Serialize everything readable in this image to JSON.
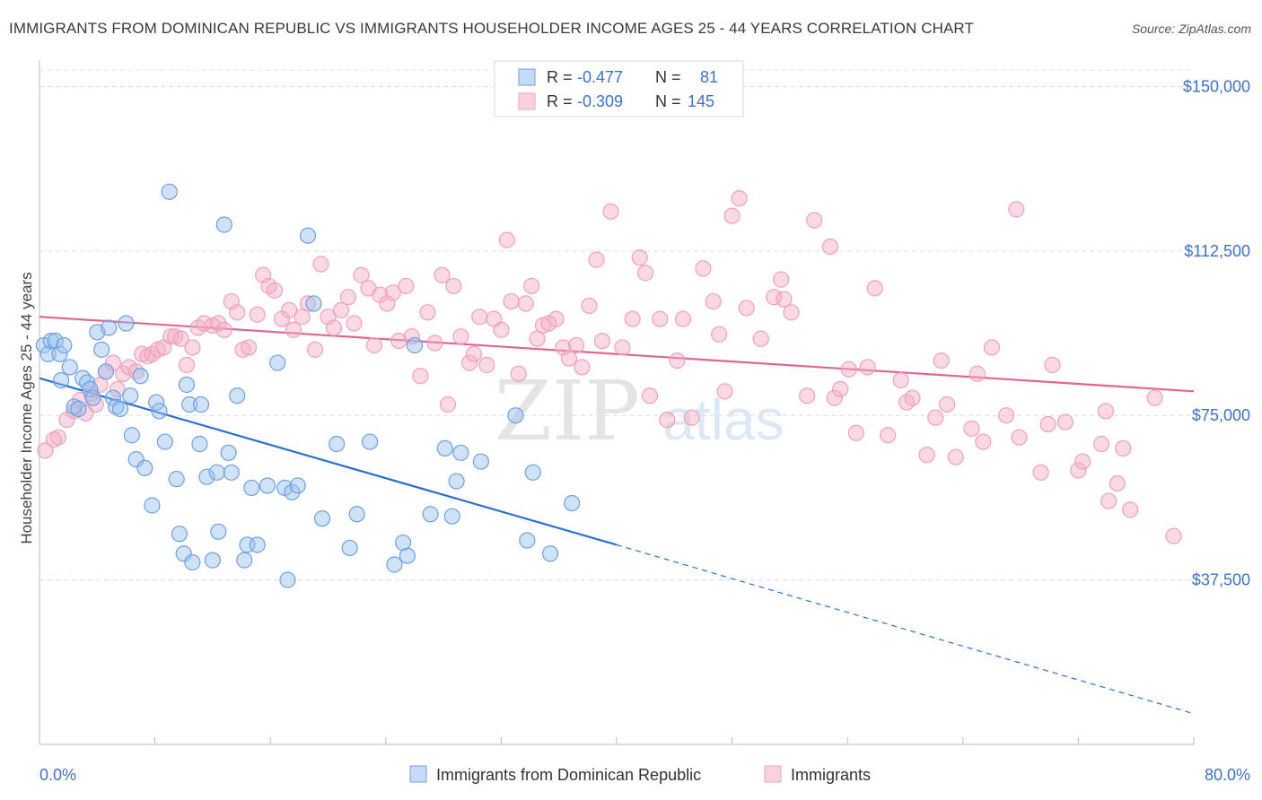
{
  "title": "IMMIGRANTS FROM DOMINICAN REPUBLIC VS IMMIGRANTS HOUSEHOLDER INCOME AGES 25 - 44 YEARS CORRELATION CHART",
  "source": "Source: ZipAtlas.com",
  "watermark": {
    "zip": "ZIP",
    "atlas": "atlas"
  },
  "colors": {
    "blue": "#6fa0e0",
    "blue_line": "#2b6fd1",
    "pink": "#f2a3bc",
    "pink_line": "#e06790",
    "tick_label": "#3d72c7"
  },
  "chart_data": {
    "type": "scatter",
    "title": "IMMIGRANTS FROM DOMINICAN REPUBLIC VS IMMIGRANTS HOUSEHOLDER INCOME AGES 25 - 44 YEARS CORRELATION CHART",
    "xlabel": "",
    "ylabel": "Householder Income Ages 25 - 44 years",
    "xlim": [
      0,
      80
    ],
    "ylim": [
      0,
      155000
    ],
    "x_tick_labels": [
      "0.0%",
      "80.0%"
    ],
    "y_ticks": [
      37500,
      75000,
      112500,
      150000
    ],
    "y_tick_labels": [
      "$37,500",
      "$75,000",
      "$112,500",
      "$150,000"
    ],
    "grid": true,
    "legend_top": [
      {
        "r_label": "R = ",
        "r_value": "-0.477",
        "n_label": "N = ",
        "n_value": "81"
      },
      {
        "r_label": "R = ",
        "r_value": "-0.309",
        "n_label": "N = ",
        "n_value": "145"
      }
    ],
    "legend_bottom": [
      "Immigrants from Dominican Republic",
      "Immigrants"
    ],
    "series": [
      {
        "name": "Immigrants from Dominican Republic",
        "trend": {
          "x0": 0,
          "y0": 83500,
          "x1": 40,
          "y1": 45500,
          "x_dash_end": 80,
          "y_dash_end": 7000
        },
        "points": [
          [
            0.3,
            91000
          ],
          [
            0.6,
            89000
          ],
          [
            0.8,
            92000
          ],
          [
            1.1,
            92000
          ],
          [
            1.4,
            89000
          ],
          [
            1.7,
            91000
          ],
          [
            1.5,
            83000
          ],
          [
            2.1,
            86000
          ],
          [
            2.4,
            77000
          ],
          [
            2.7,
            76500
          ],
          [
            3.0,
            83500
          ],
          [
            3.3,
            82500
          ],
          [
            3.5,
            81000
          ],
          [
            3.7,
            79000
          ],
          [
            4.0,
            94000
          ],
          [
            4.3,
            90000
          ],
          [
            4.6,
            85000
          ],
          [
            4.8,
            95000
          ],
          [
            5.1,
            79000
          ],
          [
            5.3,
            77000
          ],
          [
            5.6,
            76500
          ],
          [
            6.0,
            96000
          ],
          [
            6.3,
            79500
          ],
          [
            6.4,
            70500
          ],
          [
            6.7,
            65000
          ],
          [
            7.0,
            84000
          ],
          [
            7.3,
            63000
          ],
          [
            7.8,
            54500
          ],
          [
            8.1,
            78000
          ],
          [
            8.3,
            76000
          ],
          [
            8.7,
            69000
          ],
          [
            9.0,
            126000
          ],
          [
            9.5,
            60500
          ],
          [
            9.7,
            48000
          ],
          [
            10.0,
            43500
          ],
          [
            10.2,
            82000
          ],
          [
            10.4,
            77500
          ],
          [
            10.6,
            41500
          ],
          [
            11.1,
            68500
          ],
          [
            11.2,
            77500
          ],
          [
            11.6,
            61000
          ],
          [
            12.0,
            42000
          ],
          [
            12.3,
            62000
          ],
          [
            12.4,
            48500
          ],
          [
            12.8,
            118500
          ],
          [
            13.1,
            66500
          ],
          [
            13.3,
            62000
          ],
          [
            13.7,
            79500
          ],
          [
            14.2,
            42000
          ],
          [
            14.4,
            45500
          ],
          [
            14.7,
            58500
          ],
          [
            15.1,
            45500
          ],
          [
            15.8,
            59000
          ],
          [
            16.5,
            87000
          ],
          [
            17.0,
            58500
          ],
          [
            17.2,
            37500
          ],
          [
            17.5,
            57500
          ],
          [
            17.9,
            59000
          ],
          [
            18.6,
            116000
          ],
          [
            19.0,
            100500
          ],
          [
            19.6,
            51500
          ],
          [
            20.6,
            68500
          ],
          [
            21.5,
            44800
          ],
          [
            22.0,
            52500
          ],
          [
            22.9,
            69000
          ],
          [
            24.6,
            41000
          ],
          [
            25.2,
            46000
          ],
          [
            25.5,
            43000
          ],
          [
            26.0,
            91000
          ],
          [
            27.1,
            52500
          ],
          [
            28.1,
            67500
          ],
          [
            28.6,
            52000
          ],
          [
            28.9,
            60000
          ],
          [
            29.2,
            66500
          ],
          [
            30.6,
            64500
          ],
          [
            33.0,
            75000
          ],
          [
            33.8,
            46500
          ],
          [
            34.2,
            62000
          ],
          [
            35.4,
            43500
          ],
          [
            36.9,
            55000
          ]
        ]
      },
      {
        "name": "Immigrants",
        "trend": {
          "x0": 0,
          "y0": 97500,
          "x1": 80,
          "y1": 80500
        },
        "points": [
          [
            0.4,
            67000
          ],
          [
            1.0,
            69500
          ],
          [
            1.3,
            70000
          ],
          [
            1.9,
            74000
          ],
          [
            2.4,
            76000
          ],
          [
            2.8,
            78500
          ],
          [
            3.2,
            75500
          ],
          [
            3.6,
            80000
          ],
          [
            3.9,
            77500
          ],
          [
            4.2,
            82000
          ],
          [
            4.6,
            85000
          ],
          [
            5.1,
            87000
          ],
          [
            5.4,
            81000
          ],
          [
            5.8,
            84500
          ],
          [
            6.2,
            86000
          ],
          [
            6.7,
            85000
          ],
          [
            7.1,
            89000
          ],
          [
            7.5,
            88500
          ],
          [
            7.8,
            89000
          ],
          [
            8.2,
            90000
          ],
          [
            8.6,
            90500
          ],
          [
            9.1,
            93000
          ],
          [
            9.4,
            93000
          ],
          [
            9.8,
            92500
          ],
          [
            10.2,
            86500
          ],
          [
            10.6,
            90500
          ],
          [
            11.0,
            95000
          ],
          [
            11.4,
            96000
          ],
          [
            12.0,
            95500
          ],
          [
            12.4,
            96000
          ],
          [
            12.8,
            94500
          ],
          [
            13.3,
            101000
          ],
          [
            13.7,
            98500
          ],
          [
            14.1,
            90000
          ],
          [
            14.5,
            90500
          ],
          [
            15.1,
            98000
          ],
          [
            15.5,
            107000
          ],
          [
            15.9,
            104500
          ],
          [
            16.3,
            103500
          ],
          [
            16.8,
            97000
          ],
          [
            17.3,
            99000
          ],
          [
            17.6,
            94500
          ],
          [
            18.2,
            97500
          ],
          [
            18.6,
            100500
          ],
          [
            19.1,
            90000
          ],
          [
            19.5,
            109500
          ],
          [
            20.0,
            97500
          ],
          [
            20.4,
            95000
          ],
          [
            20.9,
            99000
          ],
          [
            21.4,
            102000
          ],
          [
            21.8,
            96000
          ],
          [
            22.3,
            107000
          ],
          [
            22.8,
            104000
          ],
          [
            23.2,
            91000
          ],
          [
            23.6,
            102500
          ],
          [
            24.1,
            100500
          ],
          [
            24.5,
            103000
          ],
          [
            24.9,
            92000
          ],
          [
            25.4,
            104500
          ],
          [
            25.8,
            93000
          ],
          [
            26.4,
            84000
          ],
          [
            26.9,
            98500
          ],
          [
            27.4,
            91500
          ],
          [
            27.9,
            107000
          ],
          [
            28.3,
            77500
          ],
          [
            28.7,
            104500
          ],
          [
            29.2,
            93000
          ],
          [
            29.8,
            87000
          ],
          [
            30.1,
            89000
          ],
          [
            30.5,
            97500
          ],
          [
            31.0,
            86500
          ],
          [
            31.5,
            97000
          ],
          [
            32.0,
            94500
          ],
          [
            32.4,
            115000
          ],
          [
            32.7,
            101000
          ],
          [
            33.2,
            84500
          ],
          [
            33.7,
            100500
          ],
          [
            34.1,
            104500
          ],
          [
            34.5,
            92500
          ],
          [
            34.9,
            95500
          ],
          [
            35.3,
            96000
          ],
          [
            35.8,
            97000
          ],
          [
            36.3,
            90500
          ],
          [
            36.7,
            88000
          ],
          [
            37.2,
            91000
          ],
          [
            37.6,
            86000
          ],
          [
            38.1,
            100000
          ],
          [
            38.6,
            110500
          ],
          [
            39.0,
            92000
          ],
          [
            39.6,
            121500
          ],
          [
            40.4,
            90500
          ],
          [
            41.1,
            97000
          ],
          [
            41.6,
            111000
          ],
          [
            42.0,
            107500
          ],
          [
            42.3,
            79500
          ],
          [
            43.0,
            97000
          ],
          [
            43.5,
            74000
          ],
          [
            44.2,
            87500
          ],
          [
            44.6,
            97000
          ],
          [
            45.2,
            74500
          ],
          [
            46.0,
            108500
          ],
          [
            46.7,
            101000
          ],
          [
            47.1,
            93500
          ],
          [
            47.5,
            80500
          ],
          [
            48.0,
            120500
          ],
          [
            48.5,
            124500
          ],
          [
            49.0,
            99500
          ],
          [
            50.0,
            92500
          ],
          [
            50.9,
            102000
          ],
          [
            51.4,
            106000
          ],
          [
            51.6,
            101500
          ],
          [
            52.1,
            98500
          ],
          [
            53.2,
            79500
          ],
          [
            53.7,
            119500
          ],
          [
            54.8,
            113500
          ],
          [
            55.1,
            79000
          ],
          [
            55.5,
            81000
          ],
          [
            56.1,
            85500
          ],
          [
            56.6,
            71000
          ],
          [
            57.4,
            86000
          ],
          [
            57.9,
            104000
          ],
          [
            58.8,
            70500
          ],
          [
            59.7,
            83000
          ],
          [
            60.1,
            78000
          ],
          [
            60.5,
            79000
          ],
          [
            61.5,
            66000
          ],
          [
            62.1,
            74500
          ],
          [
            62.5,
            87500
          ],
          [
            62.9,
            77500
          ],
          [
            63.5,
            65500
          ],
          [
            64.6,
            72000
          ],
          [
            65.0,
            84500
          ],
          [
            65.4,
            69000
          ],
          [
            66.0,
            90500
          ],
          [
            67.0,
            75000
          ],
          [
            67.9,
            70000
          ],
          [
            69.4,
            62000
          ],
          [
            69.9,
            73000
          ],
          [
            70.2,
            86500
          ],
          [
            71.1,
            73500
          ],
          [
            72.0,
            62500
          ],
          [
            72.3,
            64500
          ],
          [
            73.6,
            68500
          ],
          [
            73.9,
            76000
          ],
          [
            74.7,
            59500
          ],
          [
            75.1,
            67500
          ],
          [
            75.6,
            53500
          ],
          [
            77.3,
            79000
          ],
          [
            78.6,
            47500
          ],
          [
            74.1,
            55500
          ],
          [
            67.7,
            122000
          ]
        ]
      }
    ]
  }
}
